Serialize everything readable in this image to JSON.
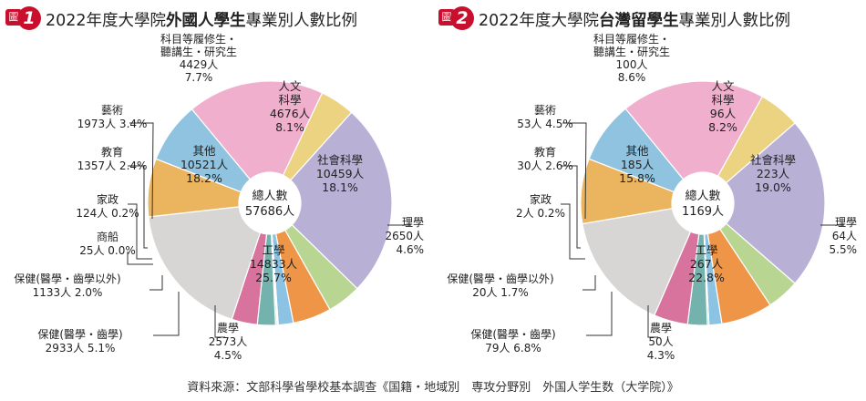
{
  "source": "資料來源：文部科學省學校基本調查《国籍・地域別　専攻分野別　外国人学生数（大学院）》",
  "chart_data": [
    {
      "type": "pie",
      "badge_prefix": "圖",
      "badge_number": "1",
      "title_pre": "2022年度大學院",
      "title_bold": "外國人學生",
      "title_post": "專業別人數比例",
      "center_label": "總人數",
      "center_value": "57686人",
      "slices": [
        {
          "key": "humanities",
          "name": "人文\n科學",
          "value_text": "4676人",
          "pct_text": "8.1%",
          "pct": 8.1,
          "color": "#8fc3e0"
        },
        {
          "key": "social",
          "name": "社會科學",
          "value_text": "10459人",
          "pct_text": "18.1%",
          "pct": 18.1,
          "color": "#efafcd"
        },
        {
          "key": "science",
          "name": "理學",
          "value_text": "2650人",
          "pct_text": "4.6%",
          "pct": 4.6,
          "color": "#ecd382"
        },
        {
          "key": "engineering",
          "name": "工學",
          "value_text": "14833人",
          "pct_text": "25.7%",
          "pct": 25.7,
          "color": "#b9b0d6"
        },
        {
          "key": "agriculture",
          "name": "農學",
          "value_text": "2573人",
          "pct_text": "4.5%",
          "pct": 4.5,
          "color": "#b9d592"
        },
        {
          "key": "health-dentistry",
          "name": "保健(醫學・齒學)",
          "value_text": "2933人",
          "pct_text": "5.1%",
          "pct": 5.1,
          "color": "#ee9548"
        },
        {
          "key": "health-other",
          "name": "保健(醫學・齒學以外)",
          "value_text": "1133人",
          "pct_text": "2.0%",
          "pct": 2.0,
          "color": "#8cc3e3"
        },
        {
          "key": "mercantile",
          "name": "商船",
          "value_text": "25人",
          "pct_text": "0.0%",
          "pct": 0.0,
          "color": "#dddddd"
        },
        {
          "key": "home-economics",
          "name": "家政",
          "value_text": "124人",
          "pct_text": "0.2%",
          "pct": 0.2,
          "color": "#a8c5a0"
        },
        {
          "key": "education",
          "name": "教育",
          "value_text": "1357人",
          "pct_text": "2.4%",
          "pct": 2.4,
          "color": "#74b3ad"
        },
        {
          "key": "arts",
          "name": "藝術",
          "value_text": "1973人",
          "pct_text": "3.4%",
          "pct": 3.4,
          "color": "#d7739c"
        },
        {
          "key": "other",
          "name": "其他",
          "value_text": "10521人",
          "pct_text": "18.2%",
          "pct": 18.2,
          "color": "#d7d6d5"
        },
        {
          "key": "auditors",
          "name": "科目等履修生・\n聽講生・研究生",
          "value_text": "4429人",
          "pct_text": "7.7%",
          "pct": 7.7,
          "color": "#ebb45e"
        }
      ]
    },
    {
      "type": "pie",
      "badge_prefix": "圖",
      "badge_number": "2",
      "title_pre": "2022年度大學院",
      "title_bold": "台灣留學生",
      "title_post": "專業別人數比例",
      "center_label": "總人數",
      "center_value": "1169人",
      "slices": [
        {
          "key": "humanities",
          "name": "人文\n科學",
          "value_text": "96人",
          "pct_text": "8.2%",
          "pct": 8.2,
          "color": "#8fc3e0"
        },
        {
          "key": "social",
          "name": "社會科學",
          "value_text": "223人",
          "pct_text": "19.0%",
          "pct": 19.0,
          "color": "#efafcd"
        },
        {
          "key": "science",
          "name": "理學",
          "value_text": "64人",
          "pct_text": "5.5%",
          "pct": 5.5,
          "color": "#ecd382"
        },
        {
          "key": "engineering",
          "name": "工學",
          "value_text": "267人",
          "pct_text": "22.8%",
          "pct": 22.8,
          "color": "#b9b0d6"
        },
        {
          "key": "agriculture",
          "name": "農學",
          "value_text": "50人",
          "pct_text": "4.3%",
          "pct": 4.3,
          "color": "#b9d592"
        },
        {
          "key": "health-dentistry",
          "name": "保健(醫學・齒學)",
          "value_text": "79人",
          "pct_text": "6.8%",
          "pct": 6.8,
          "color": "#ee9548"
        },
        {
          "key": "health-other",
          "name": "保健(醫學・齒學以外)",
          "value_text": "20人",
          "pct_text": "1.7%",
          "pct": 1.7,
          "color": "#8cc3e3"
        },
        {
          "key": "home-economics",
          "name": "家政",
          "value_text": "2人",
          "pct_text": "0.2%",
          "pct": 0.2,
          "color": "#a8c5a0"
        },
        {
          "key": "education",
          "name": "教育",
          "value_text": "30人",
          "pct_text": "2.6%",
          "pct": 2.6,
          "color": "#74b3ad"
        },
        {
          "key": "arts",
          "name": "藝術",
          "value_text": "53人",
          "pct_text": "4.5%",
          "pct": 4.5,
          "color": "#d7739c"
        },
        {
          "key": "other",
          "name": "其他",
          "value_text": "185人",
          "pct_text": "15.8%",
          "pct": 15.8,
          "color": "#d7d6d5"
        },
        {
          "key": "auditors",
          "name": "科目等履修生・\n聽講生・研究生",
          "value_text": "100人",
          "pct_text": "8.6%",
          "pct": 8.6,
          "color": "#ebb45e"
        }
      ]
    }
  ]
}
